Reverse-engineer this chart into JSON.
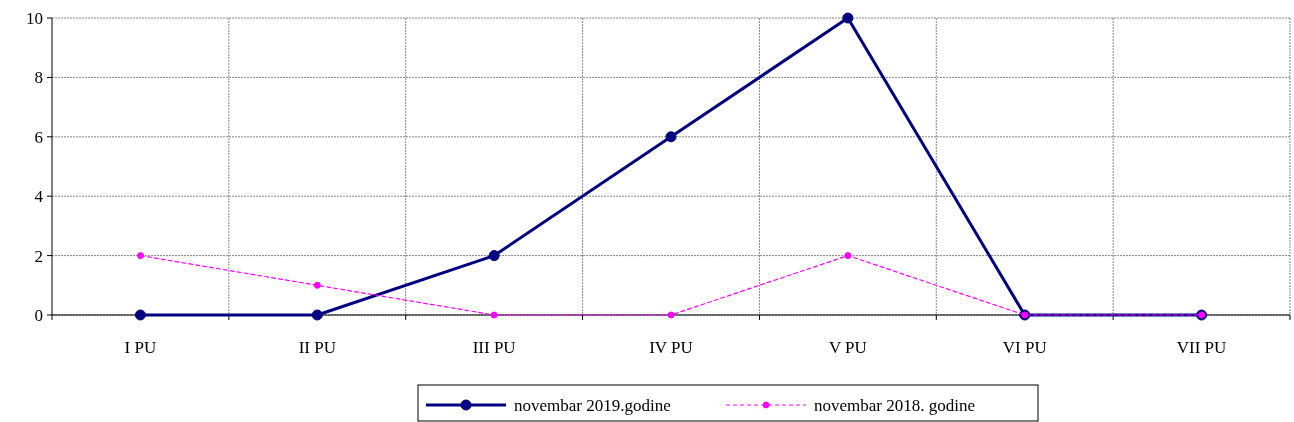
{
  "chart_data": {
    "type": "line",
    "categories": [
      "I PU",
      "II PU",
      "III PU",
      "IV PU",
      "V PU",
      "VI PU",
      "VII PU"
    ],
    "series": [
      {
        "name": "novembar 2019.godine",
        "color": "#000080",
        "values": [
          0,
          0,
          2,
          6,
          10,
          0,
          0
        ],
        "line_style": "solid",
        "marker": "circle"
      },
      {
        "name": "novembar 2018. godine",
        "color": "#ff00ff",
        "values": [
          2,
          1,
          0,
          0,
          2,
          0,
          0
        ],
        "line_style": "dashed",
        "marker": "circle"
      }
    ],
    "ylim": [
      0,
      10
    ],
    "yticks": [
      0,
      2,
      4,
      6,
      8,
      10
    ],
    "grid": true,
    "legend": "bottom"
  }
}
